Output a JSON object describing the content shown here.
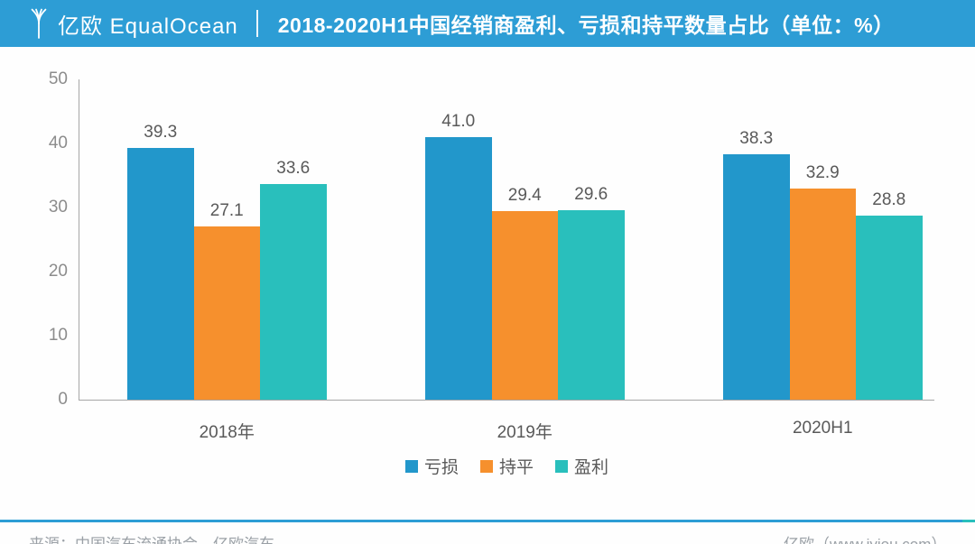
{
  "header": {
    "logo_text": "亿欧 EqualOcean",
    "title": "2018-2020H1中国经销商盈利、亏损和持平数量占比（单位：%）"
  },
  "chart_data": {
    "type": "bar",
    "title": "2018-2020H1中国经销商盈利、亏损和持平数量占比（单位：%）",
    "categories": [
      "2018年",
      "2019年",
      "2020H1"
    ],
    "series": [
      {
        "name": "亏损",
        "color": "#2297cb",
        "values": [
          39.3,
          41.0,
          38.3
        ]
      },
      {
        "name": "持平",
        "color": "#f6902d",
        "values": [
          27.1,
          29.4,
          32.9
        ]
      },
      {
        "name": "盈利",
        "color": "#29bfbc",
        "values": [
          33.6,
          29.6,
          28.8
        ]
      }
    ],
    "xlabel": "",
    "ylabel": "",
    "ylim": [
      0,
      50
    ],
    "yticks": [
      0,
      10,
      20,
      30,
      40,
      50
    ],
    "grid": false,
    "legend_position": "bottom",
    "value_labels": true
  },
  "footer": {
    "source": "来源：中国汽车流通协会，亿欧汽车",
    "credit": "亿欧（www.iyiou.com）"
  },
  "colors": {
    "banner_blue": "#2d9dd5",
    "accent_teal": "#29bfbc",
    "axis_gray": "#a6a6a6"
  }
}
